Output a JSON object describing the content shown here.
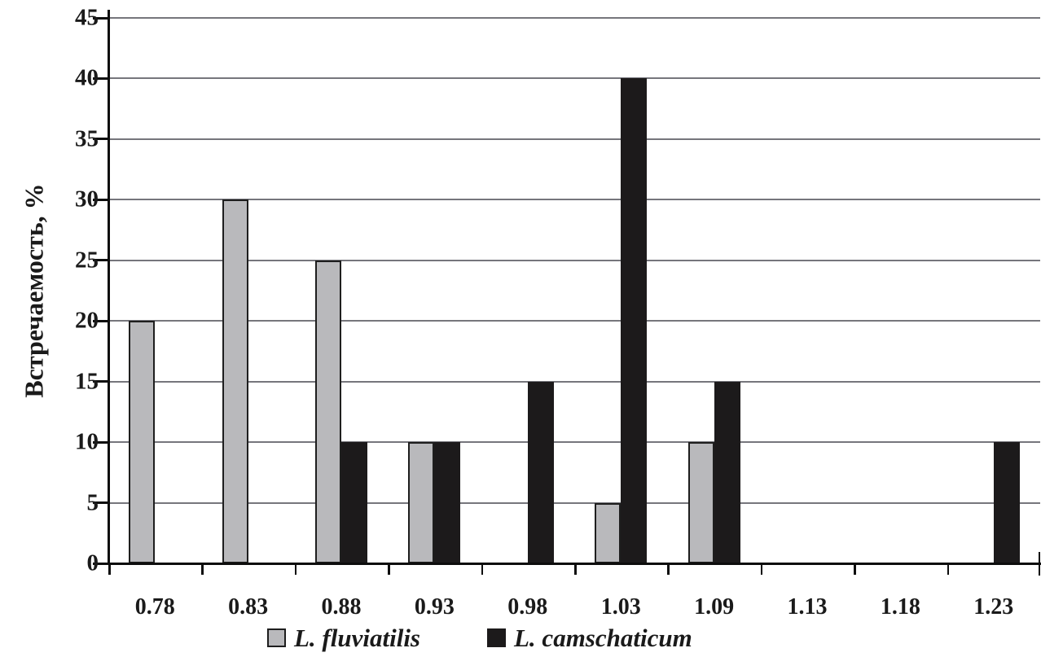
{
  "chart_data": {
    "type": "bar",
    "title": "",
    "xlabel": "",
    "ylabel": "Встречаемость, %",
    "ylim": [
      0,
      45
    ],
    "y_ticks": [
      0,
      5,
      10,
      15,
      20,
      25,
      30,
      35,
      40,
      45
    ],
    "grid": true,
    "legend_position": "bottom",
    "categories": [
      "0.78",
      "0.83",
      "0.88",
      "0.93",
      "0.98",
      "1.03",
      "1.09",
      "1.13",
      "1.18",
      "1.23"
    ],
    "series": [
      {
        "name": "L. fluviatilis",
        "color": "#b9b9bc",
        "border_color": "#1e1e1e",
        "values": [
          20,
          30,
          25,
          10,
          0,
          5,
          10,
          0,
          0,
          0
        ]
      },
      {
        "name": "L. camschaticum",
        "color": "#1c1a1b",
        "border_color": "#1c1a1b",
        "values": [
          0,
          0,
          10,
          10,
          15,
          40,
          15,
          0,
          0,
          10
        ]
      }
    ],
    "colors": {
      "gridline": "#76767c",
      "axis": "#0d0d0d",
      "text": "#1a1a1a",
      "background": "#ffffff"
    }
  }
}
